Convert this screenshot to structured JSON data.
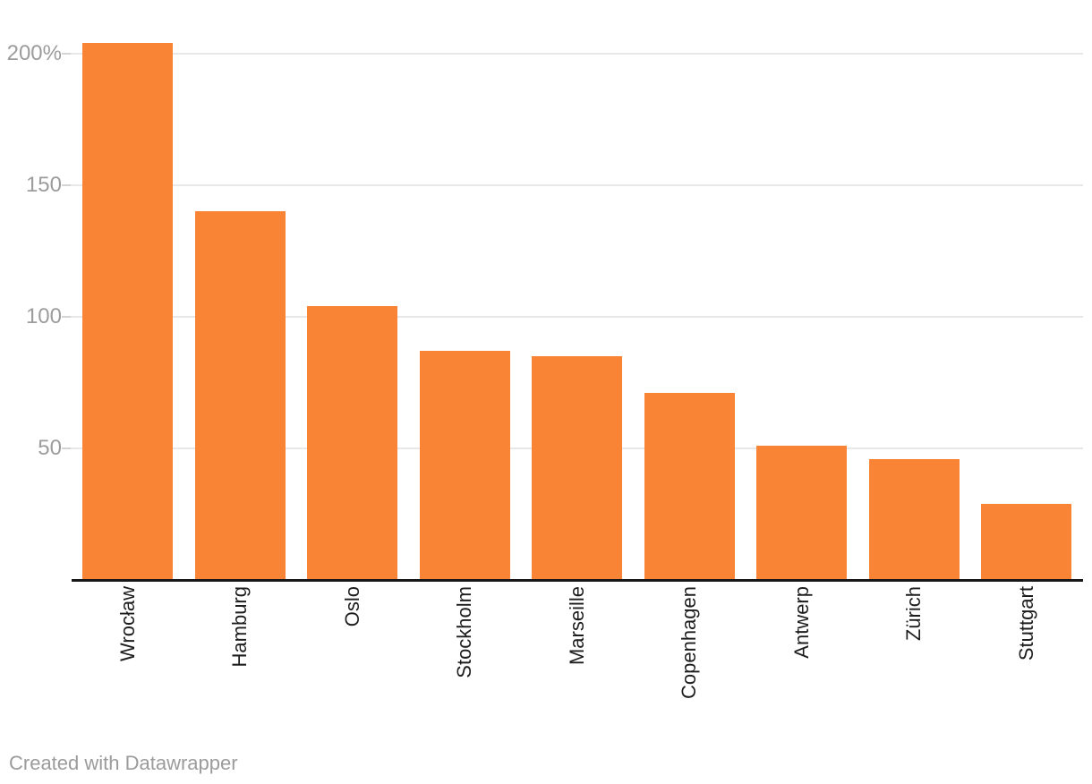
{
  "chart_data": {
    "type": "bar",
    "categories": [
      "Wrocław",
      "Hamburg",
      "Oslo",
      "Stockholm",
      "Marseille",
      "Copenhagen",
      "Antwerp",
      "Zürich",
      "Stuttgart"
    ],
    "values": [
      204,
      140,
      104,
      87,
      85,
      71,
      51,
      46,
      29
    ],
    "title": "",
    "xlabel": "",
    "ylabel": "",
    "ylim": [
      0,
      210
    ],
    "yticks": [
      {
        "value": 50,
        "label": "50"
      },
      {
        "value": 100,
        "label": "100"
      },
      {
        "value": 150,
        "label": "150"
      },
      {
        "value": 200,
        "label": "200%"
      }
    ],
    "grid": true,
    "legend": false,
    "bar_color": "#fa8436"
  },
  "footer": {
    "attribution": "Created with Datawrapper"
  },
  "colors": {
    "bar": "#fa8436",
    "gridline": "#e8e8e8",
    "grid_tick": "#d4d4d4",
    "axis": "#18181a",
    "y_label": "#9c9c9c",
    "x_label": "#1d1d1d",
    "footer": "#9b9b9b",
    "background": "#ffffff"
  }
}
